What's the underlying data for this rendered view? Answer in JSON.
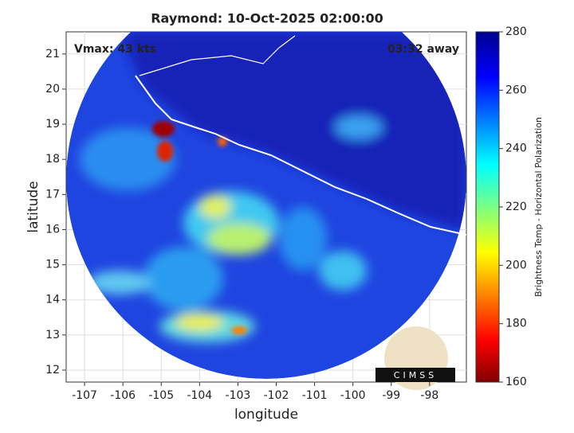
{
  "chart_data": {
    "type": "heatmap",
    "title": "Raymond: 10-Oct-2025 02:00:00",
    "annotations": [
      "Vmax: 43 kts",
      "03:32 away"
    ],
    "xlabel": "longitude",
    "ylabel": "latitude",
    "xlim": [
      -107.48,
      -97.04
    ],
    "xticks": [
      -107,
      -106,
      -105,
      -104,
      -103,
      -102,
      -101,
      -100,
      -99,
      -98
    ],
    "ylim": [
      11.66,
      21.63
    ],
    "yticks": [
      12,
      13,
      14,
      15,
      16,
      17,
      18,
      19,
      20,
      21
    ],
    "grid": true,
    "colorbar": {
      "label": "Brightness Temp - Horizontal Polarization",
      "lim": [
        160,
        280
      ],
      "ticks": [
        160,
        180,
        200,
        220,
        240,
        260,
        280
      ]
    },
    "logo": "CIMSS"
  }
}
